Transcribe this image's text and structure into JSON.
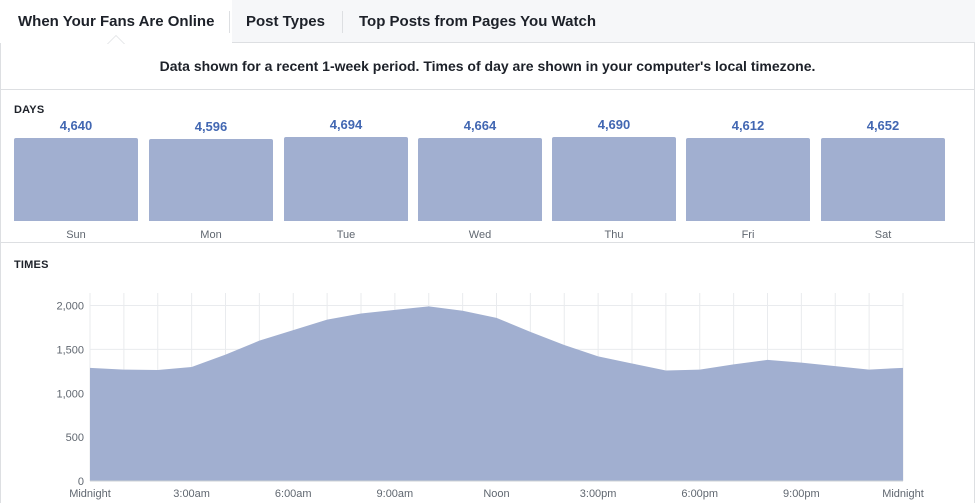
{
  "tabs": [
    {
      "label": "When Your Fans Are Online",
      "active": true
    },
    {
      "label": "Post Types",
      "active": false
    },
    {
      "label": "Top Posts from Pages You Watch",
      "active": false
    }
  ],
  "notice": "Data shown for a recent 1-week period. Times of day are shown in your computer's local timezone.",
  "colors": {
    "bar": "#a1afd0",
    "value_text": "#4267b2",
    "grid": "#e9ebee"
  },
  "chart_data": [
    {
      "type": "bar",
      "title": "DAYS",
      "categories": [
        "Sun",
        "Mon",
        "Tue",
        "Wed",
        "Thu",
        "Fri",
        "Sat"
      ],
      "values": [
        4640,
        4596,
        4694,
        4664,
        4690,
        4612,
        4652
      ],
      "value_labels": [
        "4,640",
        "4,596",
        "4,694",
        "4,664",
        "4,690",
        "4,612",
        "4,652"
      ],
      "grid": false
    },
    {
      "type": "area",
      "title": "TIMES",
      "x": [
        0,
        1,
        2,
        3,
        4,
        5,
        6,
        7,
        8,
        9,
        10,
        11,
        12,
        13,
        14,
        15,
        16,
        17,
        18,
        19,
        20,
        21,
        22,
        23,
        24
      ],
      "values": [
        1290,
        1270,
        1265,
        1300,
        1440,
        1600,
        1720,
        1840,
        1910,
        1950,
        1990,
        1940,
        1860,
        1700,
        1550,
        1420,
        1340,
        1260,
        1270,
        1330,
        1380,
        1350,
        1310,
        1270,
        1290
      ],
      "ylim": [
        0,
        2200
      ],
      "yticks": [
        0,
        500,
        1000,
        1500,
        2000
      ],
      "ytick_labels": [
        "0",
        "500",
        "1,000",
        "1,500",
        "2,000"
      ],
      "xtick_labels": [
        "Midnight",
        "3:00am",
        "6:00am",
        "9:00am",
        "Noon",
        "3:00pm",
        "6:00pm",
        "9:00pm",
        "Midnight"
      ],
      "grid": true
    }
  ]
}
